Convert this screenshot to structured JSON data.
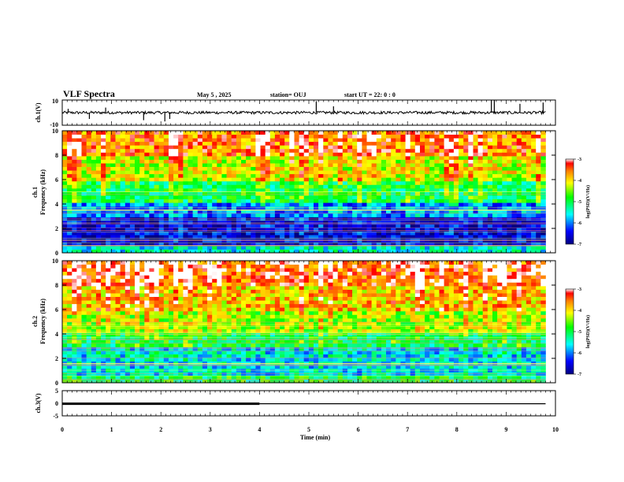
{
  "header": {
    "title": "VLF Spectra",
    "date": "May 5 , 2025",
    "station": "station= OUJ",
    "start": "start UT = 22: 0 : 0"
  },
  "chart_data": [
    {
      "type": "line",
      "panel": "ch1-waveform",
      "ylabel": "ch.1(V)",
      "ylim": [
        -10,
        10
      ],
      "xlim": [
        0,
        10
      ],
      "yticklabels": [
        "10",
        "-10"
      ],
      "baseline": 0,
      "spikes": [
        {
          "x": 0.12,
          "y": 3
        },
        {
          "x": 0.55,
          "y": -5
        },
        {
          "x": 0.88,
          "y": 4
        },
        {
          "x": 1.65,
          "y": -6
        },
        {
          "x": 2.08,
          "y": -7
        },
        {
          "x": 2.18,
          "y": -5
        },
        {
          "x": 5.15,
          "y": 9
        },
        {
          "x": 5.5,
          "y": 5
        },
        {
          "x": 8.7,
          "y": 10
        },
        {
          "x": 8.76,
          "y": 10
        },
        {
          "x": 9.28,
          "y": 7
        },
        {
          "x": 9.75,
          "y": 8
        }
      ]
    },
    {
      "type": "heatmap",
      "panel": "ch1-spectrogram",
      "ylabel": "Frequency (kHz)",
      "channel_label": "ch.1",
      "xlim": [
        0,
        10
      ],
      "ylim": [
        0,
        10
      ],
      "yticks": [
        0,
        2,
        4,
        6,
        8,
        10
      ],
      "colorbar": {
        "label": "log(PSD)(V²/Hz)",
        "range": [
          -7,
          -3
        ],
        "ticks": [
          -3,
          -4,
          -5,
          -6,
          -7
        ]
      },
      "bands": [
        {
          "f_range": [
            8,
            10
          ],
          "level": -3.6
        },
        {
          "f_range": [
            6,
            8
          ],
          "level": -4.2
        },
        {
          "f_range": [
            4,
            6
          ],
          "level": -5.0
        },
        {
          "f_range": [
            3,
            4
          ],
          "level": -6.0
        },
        {
          "f_range": [
            0.5,
            3
          ],
          "level": -6.6
        },
        {
          "f_range": [
            0,
            0.5
          ],
          "level": -5.5
        }
      ]
    },
    {
      "type": "heatmap",
      "panel": "ch2-spectrogram",
      "ylabel": "Frequency (kHz)",
      "channel_label": "ch.2",
      "xlim": [
        0,
        10
      ],
      "ylim": [
        0,
        10
      ],
      "yticks": [
        0,
        2,
        4,
        6,
        8,
        10
      ],
      "colorbar": {
        "label": "log(PSD)(V²/Hz)",
        "range": [
          -7,
          -3
        ],
        "ticks": [
          -3,
          -4,
          -5,
          -6,
          -7
        ]
      },
      "bands": [
        {
          "f_range": [
            8,
            10
          ],
          "level": -3.4
        },
        {
          "f_range": [
            6,
            8
          ],
          "level": -3.9
        },
        {
          "f_range": [
            4,
            6
          ],
          "level": -4.4
        },
        {
          "f_range": [
            3,
            4
          ],
          "level": -5.0
        },
        {
          "f_range": [
            0.5,
            3
          ],
          "level": -5.6
        },
        {
          "f_range": [
            0,
            0.5
          ],
          "level": -5.0
        }
      ]
    },
    {
      "type": "line",
      "panel": "ch3-waveform",
      "ylabel": "ch.3(V)",
      "ylim": [
        -5,
        5
      ],
      "xlim": [
        0,
        10
      ],
      "yticklabels": [
        "5",
        "0",
        "-5"
      ],
      "segments": [
        {
          "x": [
            0,
            4
          ],
          "y": -0.2,
          "weight": "heavy"
        },
        {
          "x": [
            4,
            9.8
          ],
          "y": -0.2,
          "weight": "thin"
        }
      ]
    }
  ],
  "xaxis": {
    "label": "Time (min)",
    "ticks": [
      "0",
      "1",
      "2",
      "3",
      "4",
      "5",
      "6",
      "7",
      "8",
      "9",
      "10"
    ]
  }
}
